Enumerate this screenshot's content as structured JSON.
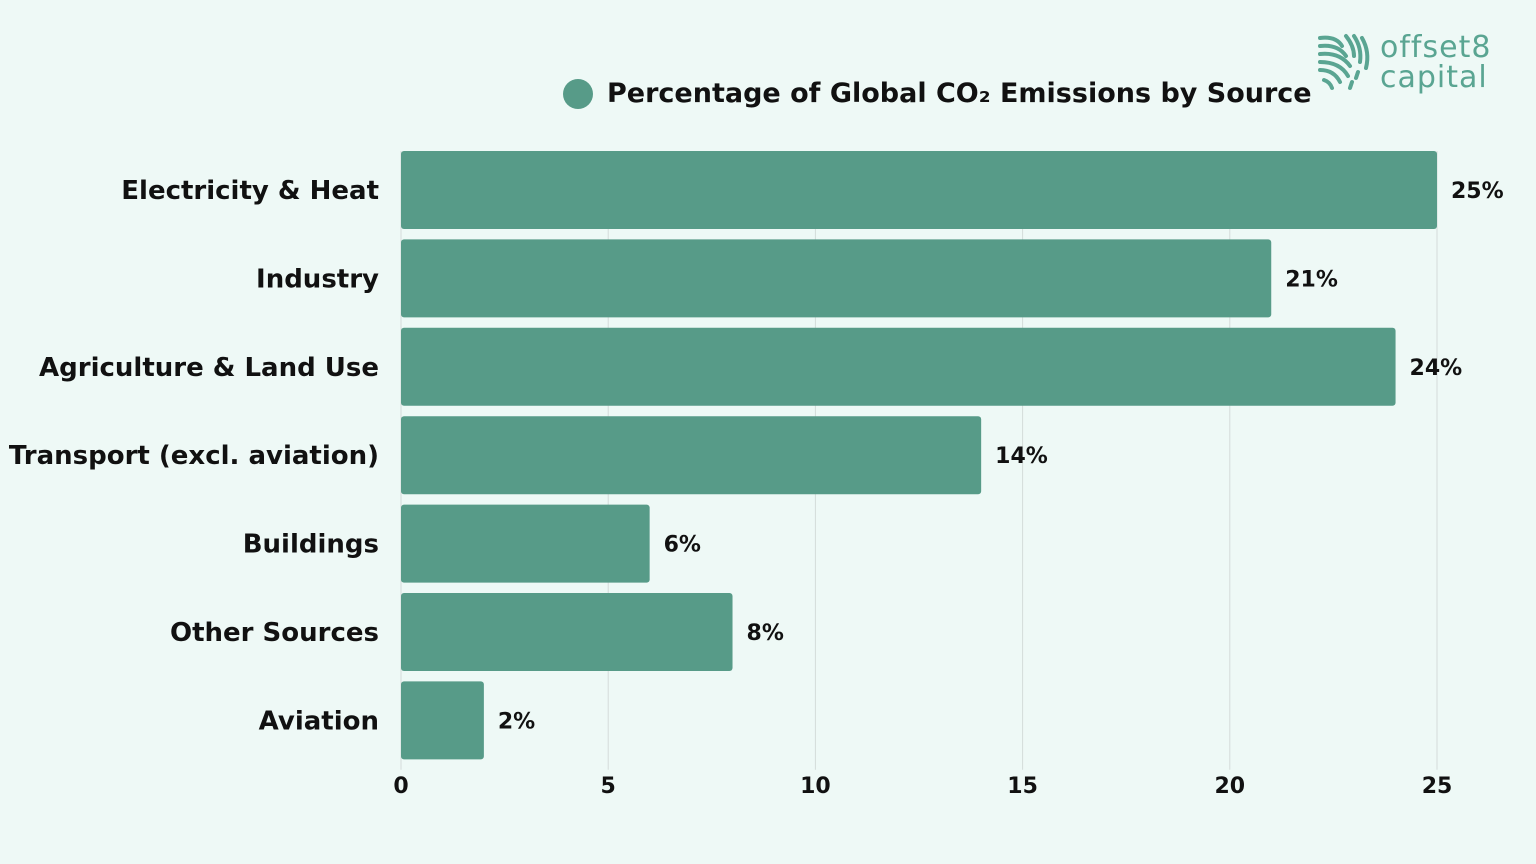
{
  "logo": {
    "line1": "offset8",
    "line2": "capital",
    "icon": "fingerprint-waves-icon"
  },
  "chart_data": {
    "type": "bar",
    "orientation": "horizontal",
    "legend": {
      "label": "Percentage of Global CO₂ Emissions by Source",
      "placement": "top"
    },
    "categories": [
      "Electricity & Heat",
      "Industry",
      "Agriculture & Land Use",
      "Transport (excl. aviation)",
      "Buildings",
      "Other Sources",
      "Aviation"
    ],
    "values": [
      25,
      21,
      24,
      14,
      6,
      8,
      2
    ],
    "data_labels": [
      "25%",
      "21%",
      "24%",
      "14%",
      "6%",
      "8%",
      "2%"
    ],
    "xlim": [
      0,
      25
    ],
    "xticks": [
      0,
      5,
      10,
      15,
      20,
      25
    ],
    "grid": "vertical",
    "color": "#579b88"
  }
}
